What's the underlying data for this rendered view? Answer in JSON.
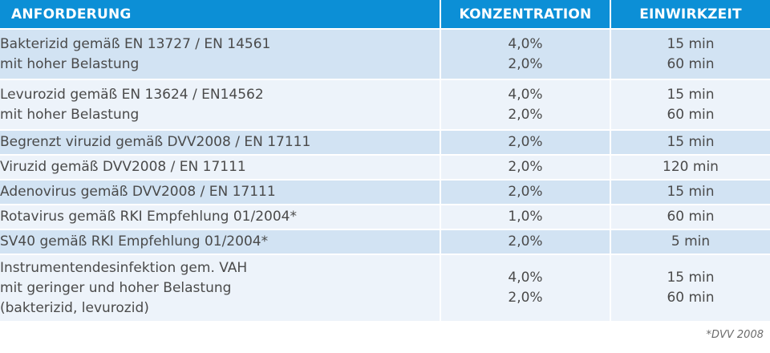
{
  "header": {
    "col_requirement": "ANFORDERUNG",
    "col_concentration": "KONZENTRATION",
    "col_time": "EINWIRKZEIT"
  },
  "rows": [
    {
      "req": [
        "Bakterizid gemäß EN 13727 / EN 14561",
        "mit hoher Belastung"
      ],
      "conc": [
        "4,0%",
        "2,0%"
      ],
      "time": [
        "15 min",
        "60 min"
      ]
    },
    {
      "req": [
        "Levurozid gemäß EN 13624 / EN14562",
        "mit hoher Belastung"
      ],
      "conc": [
        "4,0%",
        "2,0%"
      ],
      "time": [
        "15 min",
        "60 min"
      ]
    },
    {
      "req": [
        "Begrenzt viruzid gemäß DVV2008 / EN 17111"
      ],
      "conc": [
        "2,0%"
      ],
      "time": [
        "15 min"
      ]
    },
    {
      "req": [
        "Viruzid gemäß  DVV2008 / EN 17111"
      ],
      "conc": [
        "2,0%"
      ],
      "time": [
        "120 min"
      ]
    },
    {
      "req": [
        "Adenovirus gemäß DVV2008 / EN 17111"
      ],
      "conc": [
        "2,0%"
      ],
      "time": [
        "15 min"
      ]
    },
    {
      "req": [
        "Rotavirus gemäß RKI Empfehlung 01/2004*"
      ],
      "conc": [
        "1,0%"
      ],
      "time": [
        "60 min"
      ]
    },
    {
      "req": [
        "SV40 gemäß RKI Empfehlung 01/2004*"
      ],
      "conc": [
        "2,0%"
      ],
      "time": [
        "5 min"
      ]
    },
    {
      "req": [
        "Instrumentendesinfektion gem. VAH",
        "mit geringer und hoher Belastung",
        "(bakterizid, levurozid)"
      ],
      "conc": [
        "4,0%",
        "2,0%"
      ],
      "time": [
        "15 min",
        "60 min"
      ]
    }
  ],
  "footnote": "*DVV 2008",
  "colors": {
    "header_bg": "#0c8fd6",
    "row_shade": "#d2e3f3",
    "row_plain": "#edf3fa"
  }
}
